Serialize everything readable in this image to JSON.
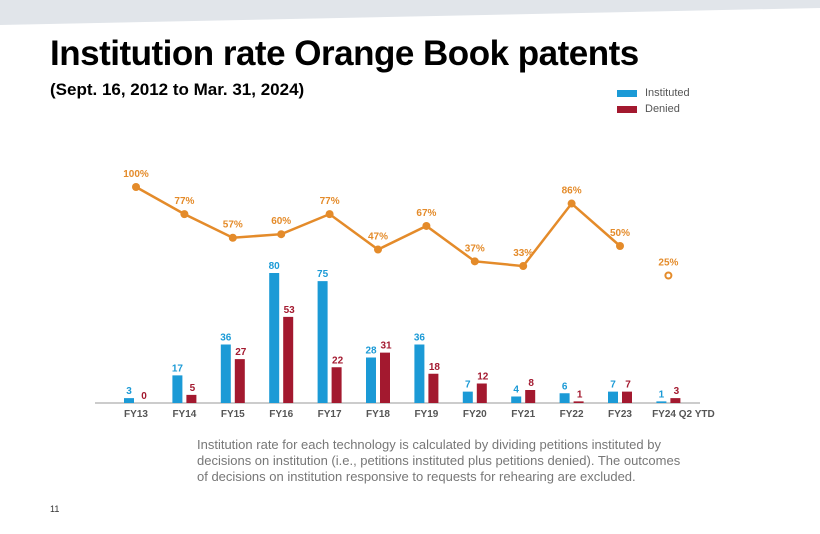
{
  "title": "Institution rate Orange Book patents",
  "subtitle": "(Sept. 16, 2012 to Mar. 31, 2024)",
  "footnote": "Institution rate for each technology is calculated by dividing petitions instituted by decisions on institution (i.e., petitions instituted plus petitions denied). The outcomes of decisions on institution responsive to requests for rehearing are excluded.",
  "page_number": "11",
  "colors": {
    "instituted": "#1b9ad6",
    "denied": "#a3192f",
    "rate": "#e48b2a",
    "band": "#e1e5ea"
  },
  "chart_data": {
    "type": "bar",
    "categories": [
      "FY13",
      "FY14",
      "FY15",
      "FY16",
      "FY17",
      "FY18",
      "FY19",
      "FY20",
      "FY21",
      "FY22",
      "FY23",
      "FY24 Q2 YTD"
    ],
    "series": [
      {
        "name": "Instituted",
        "values": [
          3,
          17,
          36,
          80,
          75,
          28,
          36,
          7,
          4,
          6,
          7,
          1
        ]
      },
      {
        "name": "Denied",
        "values": [
          0,
          5,
          27,
          53,
          22,
          31,
          18,
          12,
          8,
          1,
          7,
          3
        ]
      }
    ],
    "rate": {
      "type": "line",
      "values": [
        100,
        77,
        57,
        60,
        77,
        47,
        67,
        37,
        33,
        86,
        50,
        25
      ],
      "labels": [
        "100%",
        "77%",
        "57%",
        "60%",
        "77%",
        "47%",
        "67%",
        "37%",
        "33%",
        "86%",
        "50%",
        "25%"
      ],
      "note": "FY24 Q2 YTD shown as separate hollow point"
    },
    "legend": "top-right",
    "grid": false
  }
}
